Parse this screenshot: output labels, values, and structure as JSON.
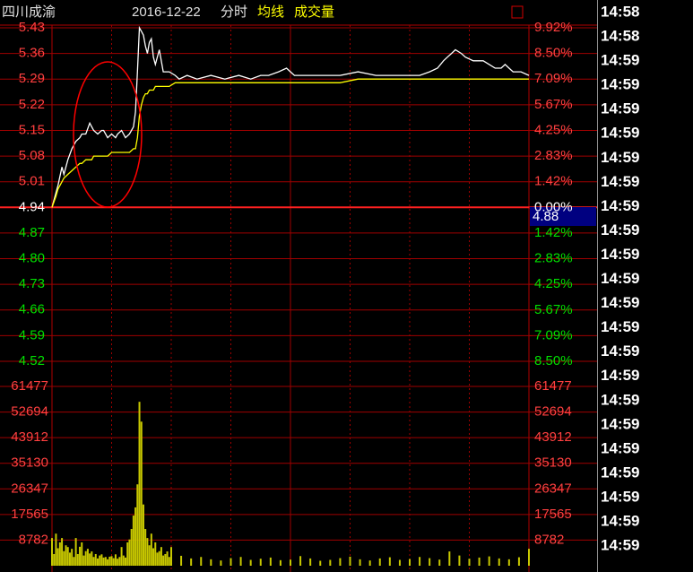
{
  "header": {
    "stock": "四川成渝",
    "date": "2016-12-22",
    "mode": "分时"
  },
  "trades": {
    "times": [
      "14:58",
      "14:58",
      "14:59",
      "14:59",
      "14:59",
      "14:59",
      "14:59",
      "14:59",
      "14:59",
      "14:59",
      "14:59",
      "14:59",
      "14:59",
      "14:59",
      "14:59",
      "14:59",
      "14:59",
      "14:59",
      "14:59",
      "14:59",
      "14:59",
      "14:59",
      "14:59"
    ]
  },
  "chart_data": [
    {
      "type": "line",
      "grid": true,
      "xlim": [
        0,
        240
      ],
      "ylim": [
        4.52,
        5.43
      ],
      "y2lim": [
        -8.5,
        9.92
      ],
      "yticks": [
        5.43,
        5.36,
        5.29,
        5.22,
        5.15,
        5.08,
        5.01,
        4.94,
        4.87,
        {
          "value": 4.8,
          "label": "4.80"
        },
        4.73,
        4.66,
        4.59,
        4.52
      ],
      "y2ticks": [
        {
          "value": 9.92,
          "label": "9.92%"
        },
        {
          "value": 8.5,
          "label": "8.50%"
        },
        {
          "value": 7.09,
          "label": "7.09%"
        },
        {
          "value": 5.67,
          "label": "5.67%"
        },
        {
          "value": 4.25,
          "label": "4.25%"
        },
        {
          "value": 2.83,
          "label": "2.83%"
        },
        {
          "value": 1.42,
          "label": "1.42%"
        },
        {
          "value": 0,
          "label": "0.00%"
        },
        {
          "value": -1.42,
          "label": "1.42%"
        },
        {
          "value": -2.83,
          "label": "2.83%"
        },
        {
          "value": -4.25,
          "label": "4.25%"
        },
        {
          "value": -5.67,
          "label": "5.67%"
        },
        {
          "value": -7.09,
          "label": "7.09%"
        },
        {
          "value": -8.5,
          "label": "8.50%"
        }
      ],
      "cursor_value": 4.88,
      "x": [
        0,
        2,
        3,
        5,
        6,
        8,
        10,
        12,
        14,
        15,
        17,
        19,
        20,
        21,
        23,
        25,
        26,
        28,
        30,
        32,
        33,
        35,
        37,
        39,
        41,
        42,
        43,
        44,
        45,
        46,
        47,
        48,
        49,
        50,
        51,
        52,
        54,
        56,
        59,
        62,
        64,
        68,
        73,
        80,
        87,
        94,
        100,
        105,
        109,
        114,
        118,
        120,
        122,
        128,
        136,
        145,
        154,
        163,
        172,
        178,
        185,
        190,
        194,
        197,
        199,
        201,
        203,
        206,
        208,
        212,
        217,
        220,
        223,
        226,
        228,
        230,
        232,
        236,
        240
      ],
      "series": [
        {
          "color": "#ffffff",
          "values": [
            4.94,
            4.98,
            5.0,
            5.05,
            5.03,
            5.07,
            5.1,
            5.12,
            5.13,
            5.14,
            5.14,
            5.17,
            5.16,
            5.15,
            5.14,
            5.15,
            5.15,
            5.13,
            5.14,
            5.13,
            5.14,
            5.15,
            5.13,
            5.14,
            5.16,
            5.2,
            5.31,
            5.43,
            5.42,
            5.41,
            5.38,
            5.36,
            5.39,
            5.4,
            5.35,
            5.33,
            5.37,
            5.31,
            5.31,
            5.3,
            5.29,
            5.3,
            5.29,
            5.3,
            5.29,
            5.3,
            5.29,
            5.3,
            5.3,
            5.31,
            5.32,
            5.31,
            5.3,
            5.3,
            5.3,
            5.3,
            5.31,
            5.3,
            5.3,
            5.3,
            5.3,
            5.31,
            5.32,
            5.34,
            5.35,
            5.36,
            5.37,
            5.36,
            5.35,
            5.34,
            5.34,
            5.33,
            5.32,
            5.32,
            5.33,
            5.32,
            5.31,
            5.31,
            5.3
          ]
        },
        {
          "name": "均线",
          "color": "#ffff00",
          "values": [
            4.94,
            4.97,
            4.99,
            5.01,
            5.02,
            5.03,
            5.04,
            5.05,
            5.06,
            5.06,
            5.07,
            5.07,
            5.07,
            5.08,
            5.08,
            5.08,
            5.08,
            5.08,
            5.09,
            5.09,
            5.09,
            5.09,
            5.09,
            5.09,
            5.1,
            5.1,
            5.13,
            5.19,
            5.22,
            5.24,
            5.25,
            5.25,
            5.26,
            5.26,
            5.26,
            5.27,
            5.27,
            5.27,
            5.27,
            5.28,
            5.28,
            5.28,
            5.28,
            5.28,
            5.28,
            5.28,
            5.28,
            5.28,
            5.28,
            5.28,
            5.28,
            5.28,
            5.28,
            5.28,
            5.28,
            5.28,
            5.29,
            5.29,
            5.29,
            5.29,
            5.29,
            5.29,
            5.29,
            5.29,
            5.29,
            5.29,
            5.29,
            5.29,
            5.29,
            5.29,
            5.29,
            5.29,
            5.29,
            5.29,
            5.29,
            5.29,
            5.29,
            5.29,
            5.29
          ]
        }
      ]
    },
    {
      "type": "bar",
      "title": "成交量",
      "color": "#c8c800",
      "xlim": [
        0,
        240
      ],
      "ylim": [
        0,
        61477
      ],
      "yticks": [
        61477,
        52694,
        43912,
        35130,
        26347,
        17565,
        8782
      ],
      "x": [
        0,
        1,
        2,
        3,
        4,
        5,
        6,
        7,
        8,
        9,
        10,
        11,
        12,
        13,
        14,
        15,
        16,
        17,
        18,
        19,
        20,
        21,
        22,
        23,
        24,
        25,
        26,
        27,
        28,
        29,
        30,
        31,
        32,
        33,
        34,
        35,
        36,
        37,
        38,
        39,
        40,
        41,
        42,
        43,
        44,
        45,
        46,
        47,
        48,
        49,
        50,
        51,
        52,
        53,
        54,
        55,
        56,
        57,
        58,
        59,
        60,
        65,
        70,
        75,
        80,
        85,
        90,
        95,
        100,
        105,
        110,
        115,
        120,
        125,
        130,
        135,
        140,
        145,
        150,
        155,
        160,
        165,
        170,
        175,
        180,
        185,
        190,
        195,
        200,
        205,
        210,
        215,
        220,
        225,
        230,
        235,
        240
      ],
      "values": [
        9500,
        4000,
        11000,
        6000,
        8000,
        9500,
        5000,
        7000,
        6400,
        4500,
        5800,
        3000,
        9500,
        4000,
        6500,
        8000,
        3500,
        5000,
        5800,
        4200,
        4900,
        3000,
        4000,
        2500,
        3500,
        3900,
        2800,
        3000,
        2200,
        3100,
        3300,
        2600,
        3900,
        2400,
        3000,
        6400,
        3500,
        2800,
        8000,
        9000,
        12600,
        17200,
        20000,
        27900,
        56200,
        49400,
        21000,
        12600,
        9500,
        7000,
        11000,
        6000,
        8000,
        4500,
        5000,
        6400,
        3500,
        4000,
        4900,
        3000,
        6400,
        3400,
        2500,
        3000,
        2200,
        1800,
        2600,
        3000,
        2000,
        2400,
        2800,
        1900,
        2100,
        3300,
        2500,
        1700,
        2000,
        2600,
        3100,
        2200,
        1800,
        2500,
        2900,
        2000,
        2300,
        3000,
        2600,
        2100,
        4900,
        3500,
        2400,
        2800,
        3200,
        2500,
        2200,
        2900,
        5800
      ]
    }
  ]
}
